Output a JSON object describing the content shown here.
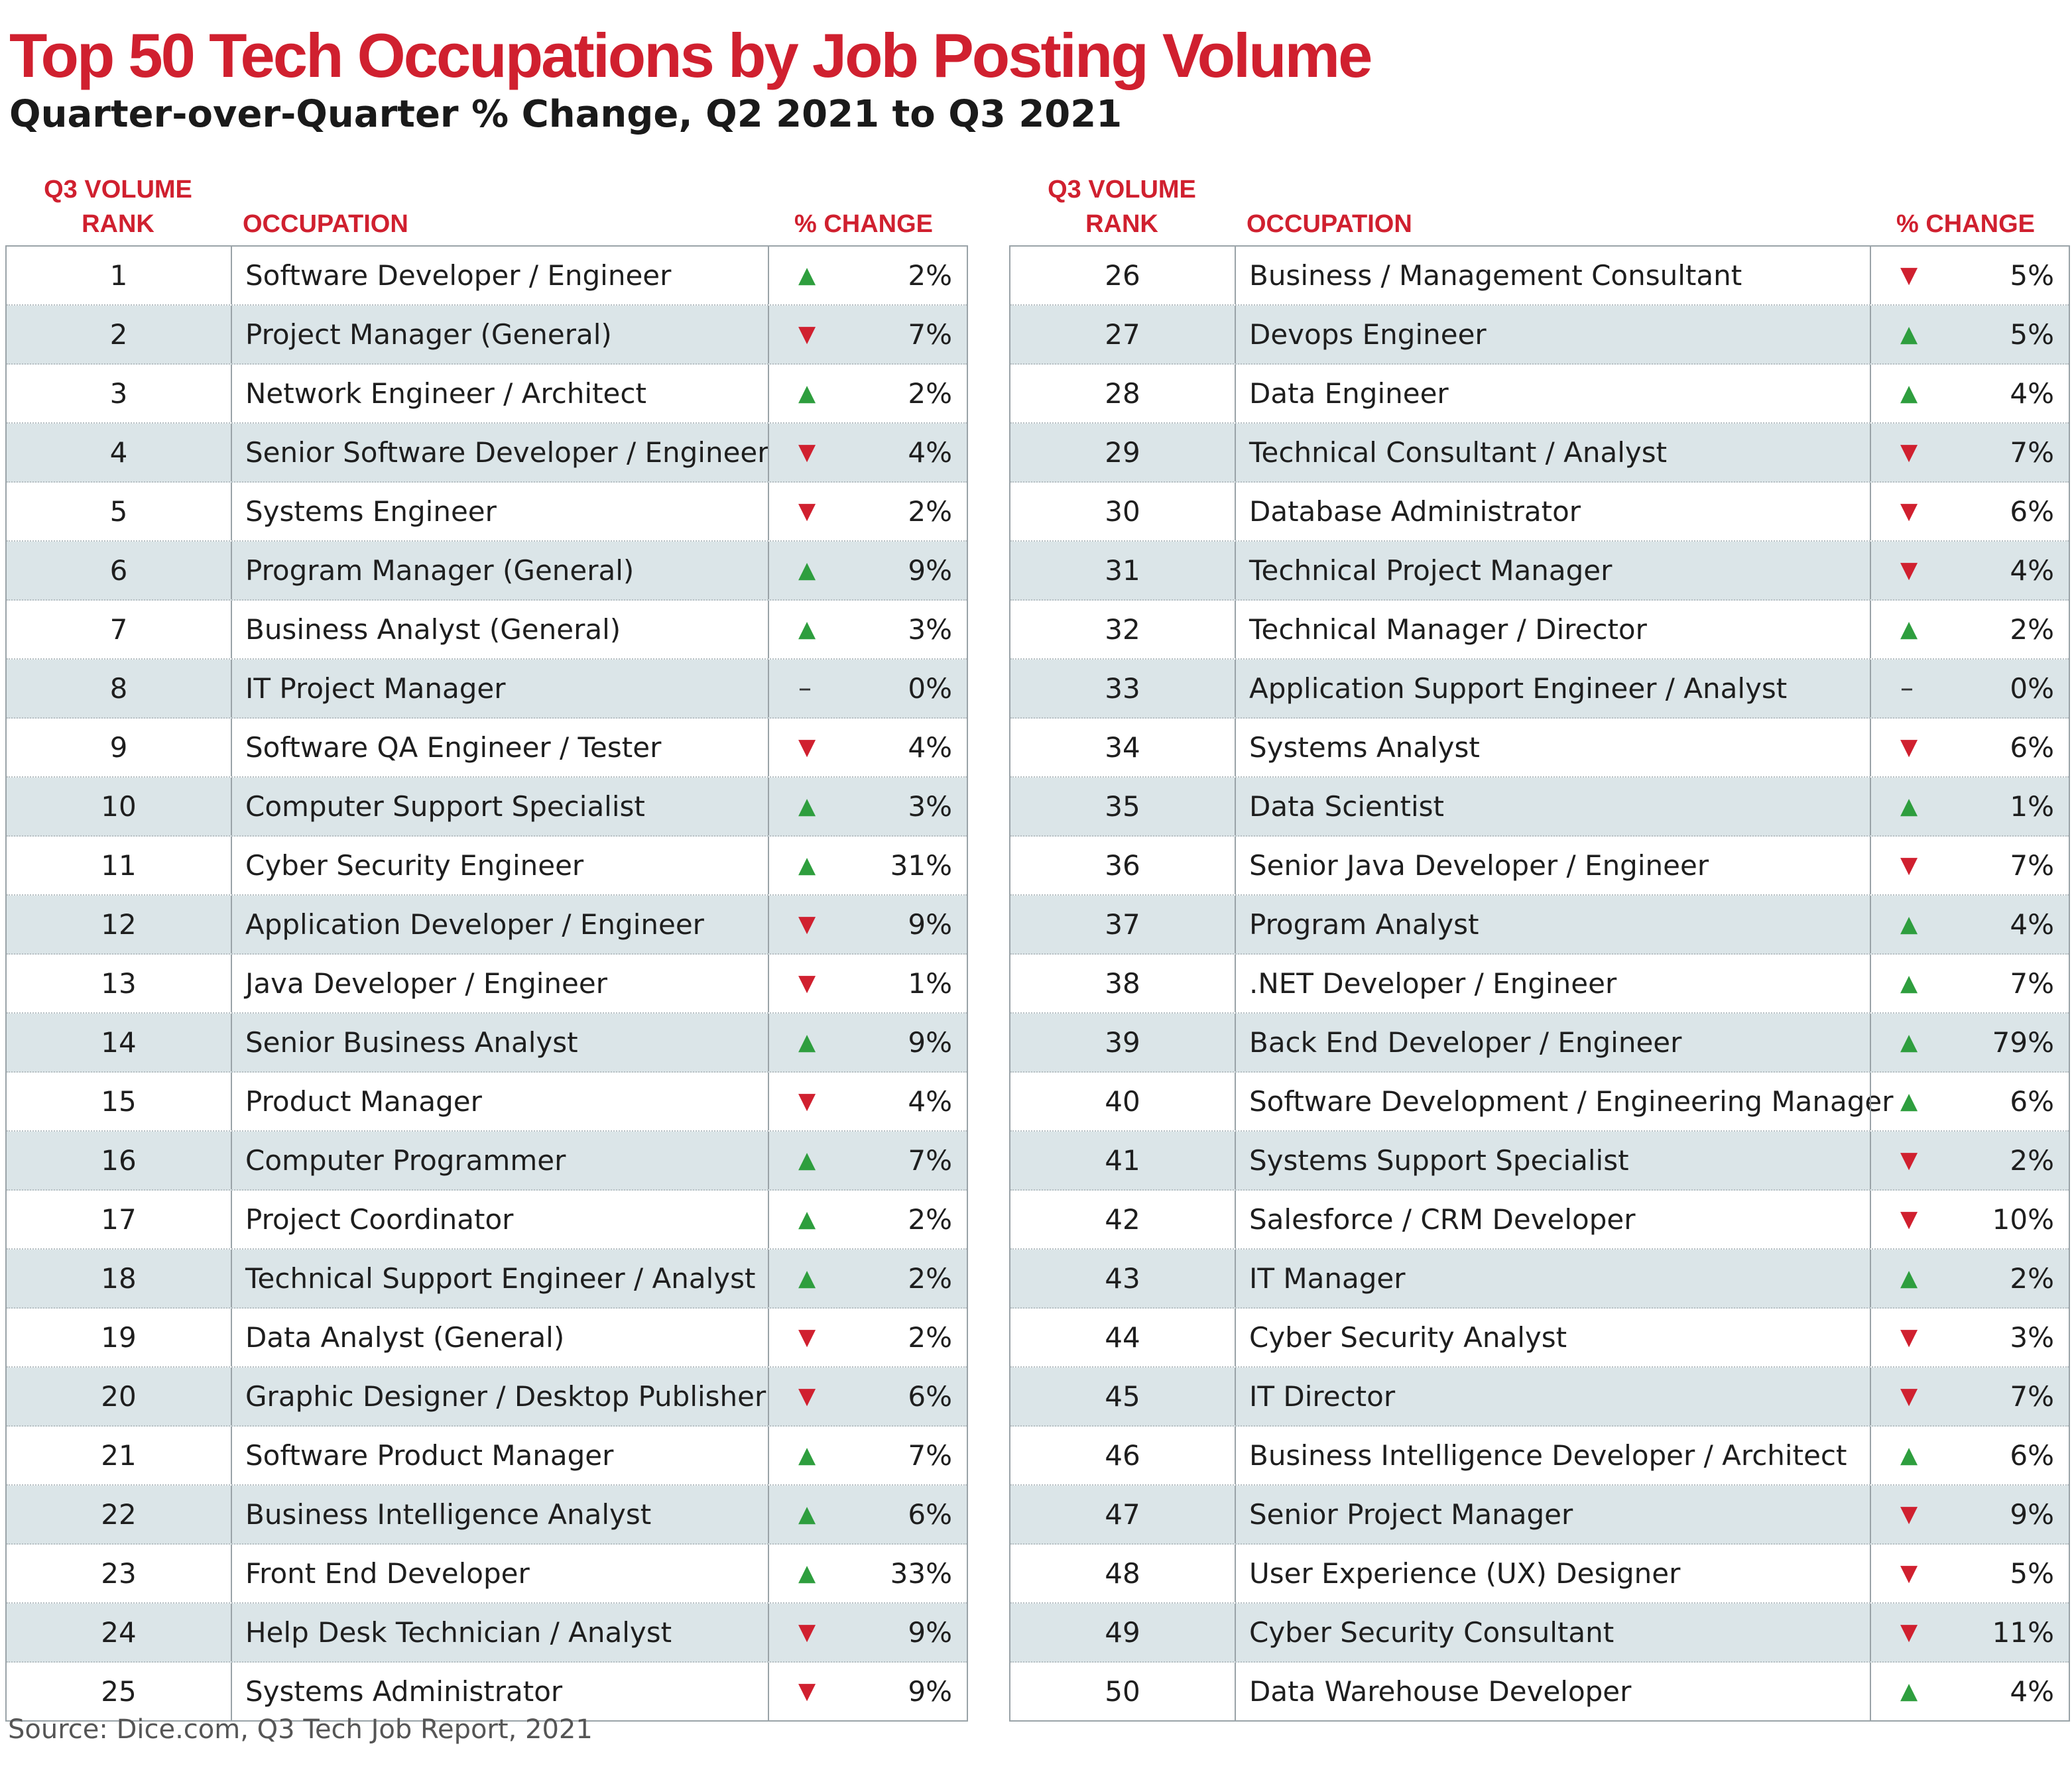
{
  "chart_data": {
    "type": "table",
    "title": "Top 50 Tech Occupations by Job Posting Volume",
    "subtitle": "Quarter-over-Quarter % Change, Q2 2021 to Q3 2021",
    "columns": {
      "rank_line1": "Q3 VOLUME",
      "rank_line2": "RANK",
      "occupation": "OCCUPATION",
      "change": "% CHANGE"
    },
    "colors": {
      "title": "#d0202f",
      "up": "#2e9e3e",
      "down": "#d0202f",
      "row_alt": "#dbe5e8"
    },
    "rows": [
      {
        "rank": "1",
        "occupation": "Software Developer / Engineer",
        "direction": "up",
        "change": "2%"
      },
      {
        "rank": "2",
        "occupation": "Project Manager (General)",
        "direction": "down",
        "change": "7%"
      },
      {
        "rank": "3",
        "occupation": "Network Engineer / Architect",
        "direction": "up",
        "change": "2%"
      },
      {
        "rank": "4",
        "occupation": "Senior Software Developer / Engineer",
        "direction": "down",
        "change": "4%"
      },
      {
        "rank": "5",
        "occupation": "Systems Engineer",
        "direction": "down",
        "change": "2%"
      },
      {
        "rank": "6",
        "occupation": "Program Manager (General)",
        "direction": "up",
        "change": "9%"
      },
      {
        "rank": "7",
        "occupation": "Business Analyst (General)",
        "direction": "up",
        "change": "3%"
      },
      {
        "rank": "8",
        "occupation": "IT Project Manager",
        "direction": "flat",
        "change": "0%"
      },
      {
        "rank": "9",
        "occupation": "Software QA Engineer / Tester",
        "direction": "down",
        "change": "4%"
      },
      {
        "rank": "10",
        "occupation": "Computer Support Specialist",
        "direction": "up",
        "change": "3%"
      },
      {
        "rank": "11",
        "occupation": "Cyber Security Engineer",
        "direction": "up",
        "change": "31%"
      },
      {
        "rank": "12",
        "occupation": "Application Developer / Engineer",
        "direction": "down",
        "change": "9%"
      },
      {
        "rank": "13",
        "occupation": "Java Developer / Engineer",
        "direction": "down",
        "change": "1%"
      },
      {
        "rank": "14",
        "occupation": "Senior Business Analyst",
        "direction": "up",
        "change": "9%"
      },
      {
        "rank": "15",
        "occupation": "Product Manager",
        "direction": "down",
        "change": "4%"
      },
      {
        "rank": "16",
        "occupation": "Computer Programmer",
        "direction": "up",
        "change": "7%"
      },
      {
        "rank": "17",
        "occupation": "Project Coordinator",
        "direction": "up",
        "change": "2%"
      },
      {
        "rank": "18",
        "occupation": "Technical Support Engineer / Analyst",
        "direction": "up",
        "change": "2%"
      },
      {
        "rank": "19",
        "occupation": "Data Analyst (General)",
        "direction": "down",
        "change": "2%"
      },
      {
        "rank": "20",
        "occupation": "Graphic Designer / Desktop Publisher",
        "direction": "down",
        "change": "6%"
      },
      {
        "rank": "21",
        "occupation": "Software Product Manager",
        "direction": "up",
        "change": "7%"
      },
      {
        "rank": "22",
        "occupation": "Business Intelligence Analyst",
        "direction": "up",
        "change": "6%"
      },
      {
        "rank": "23",
        "occupation": "Front End Developer",
        "direction": "up",
        "change": "33%"
      },
      {
        "rank": "24",
        "occupation": "Help Desk Technician / Analyst",
        "direction": "down",
        "change": "9%"
      },
      {
        "rank": "25",
        "occupation": "Systems Administrator",
        "direction": "down",
        "change": "9%"
      },
      {
        "rank": "26",
        "occupation": "Business / Management Consultant",
        "direction": "down",
        "change": "5%"
      },
      {
        "rank": "27",
        "occupation": "Devops Engineer",
        "direction": "up",
        "change": "5%"
      },
      {
        "rank": "28",
        "occupation": "Data Engineer",
        "direction": "up",
        "change": "4%"
      },
      {
        "rank": "29",
        "occupation": "Technical Consultant / Analyst",
        "direction": "down",
        "change": "7%"
      },
      {
        "rank": "30",
        "occupation": "Database Administrator",
        "direction": "down",
        "change": "6%"
      },
      {
        "rank": "31",
        "occupation": "Technical Project Manager",
        "direction": "down",
        "change": "4%"
      },
      {
        "rank": "32",
        "occupation": "Technical Manager / Director",
        "direction": "up",
        "change": "2%"
      },
      {
        "rank": "33",
        "occupation": "Application Support Engineer / Analyst",
        "direction": "flat",
        "change": "0%"
      },
      {
        "rank": "34",
        "occupation": "Systems Analyst",
        "direction": "down",
        "change": "6%"
      },
      {
        "rank": "35",
        "occupation": "Data Scientist",
        "direction": "up",
        "change": "1%"
      },
      {
        "rank": "36",
        "occupation": "Senior Java Developer / Engineer",
        "direction": "down",
        "change": "7%"
      },
      {
        "rank": "37",
        "occupation": "Program Analyst",
        "direction": "up",
        "change": "4%"
      },
      {
        "rank": "38",
        "occupation": ".NET Developer / Engineer",
        "direction": "up",
        "change": "7%"
      },
      {
        "rank": "39",
        "occupation": "Back End Developer / Engineer",
        "direction": "up",
        "change": "79%"
      },
      {
        "rank": "40",
        "occupation": "Software Development / Engineering Manager",
        "direction": "up",
        "change": "6%"
      },
      {
        "rank": "41",
        "occupation": "Systems Support Specialist",
        "direction": "down",
        "change": "2%"
      },
      {
        "rank": "42",
        "occupation": "Salesforce / CRM Developer",
        "direction": "down",
        "change": "10%"
      },
      {
        "rank": "43",
        "occupation": "IT Manager",
        "direction": "up",
        "change": "2%"
      },
      {
        "rank": "44",
        "occupation": "Cyber Security Analyst",
        "direction": "down",
        "change": "3%"
      },
      {
        "rank": "45",
        "occupation": "IT Director",
        "direction": "down",
        "change": "7%"
      },
      {
        "rank": "46",
        "occupation": "Business Intelligence Developer / Architect",
        "direction": "up",
        "change": "6%"
      },
      {
        "rank": "47",
        "occupation": "Senior Project Manager",
        "direction": "down",
        "change": "9%"
      },
      {
        "rank": "48",
        "occupation": "User Experience (UX) Designer",
        "direction": "down",
        "change": "5%"
      },
      {
        "rank": "49",
        "occupation": "Cyber Security Consultant",
        "direction": "down",
        "change": "11%"
      },
      {
        "rank": "50",
        "occupation": "Data Warehouse Developer",
        "direction": "up",
        "change": "4%"
      }
    ],
    "source": "Source: Dice.com, Q3 Tech Job Report, 2021"
  }
}
